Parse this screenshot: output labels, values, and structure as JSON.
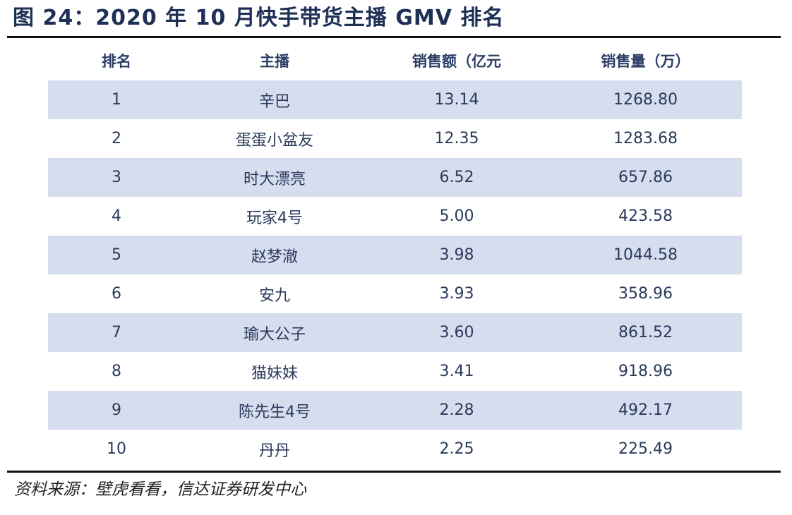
{
  "title": "图 24：2020 年 10 月快手带货主播 GMV 排名",
  "table": {
    "headers": [
      "排名",
      "主播",
      "销售额（亿元",
      "销售量（万）"
    ],
    "rows": [
      [
        "1",
        "辛巴",
        "13.14",
        "1268.80"
      ],
      [
        "2",
        "蛋蛋小盆友",
        "12.35",
        "1283.68"
      ],
      [
        "3",
        "时大漂亮",
        "6.52",
        "657.86"
      ],
      [
        "4",
        "玩家4号",
        "5.00",
        "423.58"
      ],
      [
        "5",
        "赵梦澈",
        "3.98",
        "1044.58"
      ],
      [
        "6",
        "安九",
        "3.93",
        "358.96"
      ],
      [
        "7",
        "瑜大公子",
        "3.60",
        "861.52"
      ],
      [
        "8",
        "猫妹妹",
        "3.41",
        "918.96"
      ],
      [
        "9",
        "陈先生4号",
        "2.28",
        "492.17"
      ],
      [
        "10",
        "丹丹",
        "2.25",
        "225.49"
      ]
    ]
  },
  "source": "资料来源：壁虎看看，信达证券研发中心",
  "colors": {
    "row_shade": "#d6ddee",
    "title_text": "#1f3056",
    "rule": "#111111"
  }
}
